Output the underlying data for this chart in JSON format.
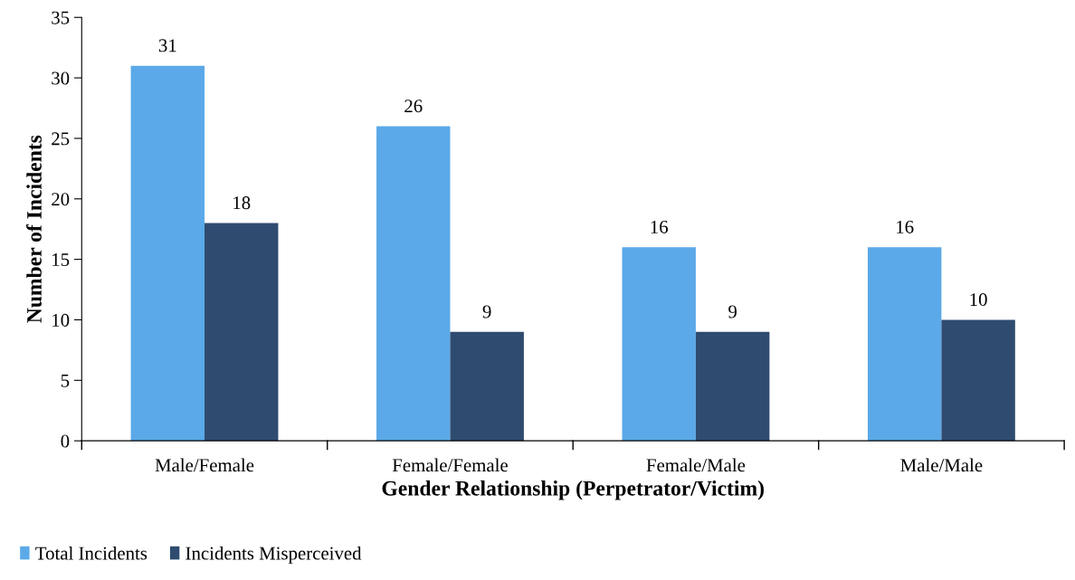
{
  "chart_data": {
    "type": "bar",
    "xlabel": "Gender Relationship (Perpetrator/Victim)",
    "ylabel": "Number of Incidents",
    "categories": [
      "Male/Female",
      "Female/Female",
      "Female/Male",
      "Male/Male"
    ],
    "series": [
      {
        "name": "Total Incidents",
        "color": "#5ba9e8",
        "values": [
          31,
          26,
          16,
          16
        ]
      },
      {
        "name": "Incidents Misperceived",
        "color": "#2f4b70",
        "values": [
          18,
          9,
          9,
          10
        ]
      }
    ],
    "ylim": [
      0,
      35
    ],
    "yticks": [
      0,
      5,
      10,
      15,
      20,
      25,
      30,
      35
    ],
    "grid": false,
    "legend": "bottom left",
    "data_labels": true
  }
}
